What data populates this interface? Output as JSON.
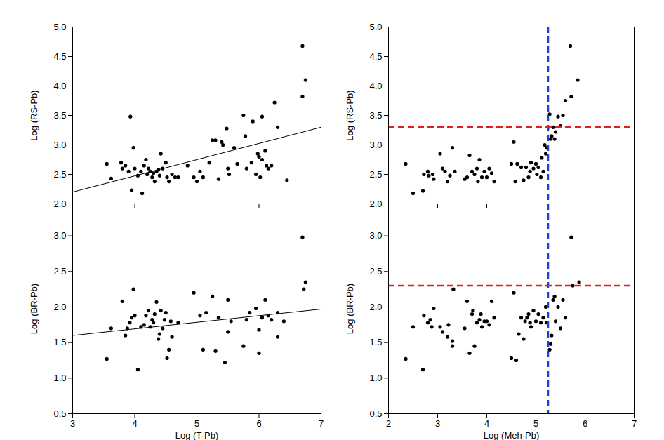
{
  "chart_data": [
    {
      "type": "scatter",
      "ylabel": "Log (RS-Pb)",
      "tick_labels": "y",
      "xlim": [
        3,
        7
      ],
      "xticks": [
        3,
        4,
        5,
        6,
        7
      ],
      "ylim": [
        2.0,
        5.0
      ],
      "yticks": [
        {
          "value": 2.0,
          "label": "2.0"
        },
        2.5,
        {
          "value": 3.0,
          "label": "3.0"
        },
        3.5,
        {
          "value": 4.0,
          "label": "4.0"
        },
        4.5,
        {
          "value": 5.0,
          "label": "5.0"
        }
      ],
      "color": "#000000",
      "marker": "circle",
      "x": [
        3.55,
        3.62,
        3.78,
        3.8,
        3.85,
        3.9,
        3.93,
        3.95,
        3.98,
        4.0,
        4.05,
        4.1,
        4.12,
        4.15,
        4.18,
        4.2,
        4.22,
        4.25,
        4.28,
        4.3,
        4.32,
        4.35,
        4.38,
        4.4,
        4.42,
        4.45,
        4.5,
        4.52,
        4.55,
        4.6,
        4.65,
        4.7,
        4.85,
        4.95,
        5.0,
        5.05,
        5.1,
        5.2,
        5.25,
        5.3,
        5.35,
        5.4,
        5.42,
        5.48,
        5.5,
        5.52,
        5.6,
        5.65,
        5.75,
        5.78,
        5.8,
        5.88,
        5.9,
        5.95,
        5.98,
        6.0,
        6.02,
        6.05,
        6.05,
        6.1,
        6.12,
        6.15,
        6.2,
        6.25,
        6.3,
        6.45,
        6.7,
        6.7,
        6.75
      ],
      "values": [
        2.68,
        2.43,
        2.7,
        2.6,
        2.65,
        2.55,
        3.48,
        2.23,
        2.95,
        2.6,
        2.48,
        2.55,
        2.18,
        2.65,
        2.75,
        2.5,
        2.6,
        2.55,
        2.45,
        2.52,
        2.38,
        2.55,
        2.58,
        2.48,
        2.85,
        2.6,
        2.7,
        2.45,
        2.38,
        2.5,
        2.45,
        2.45,
        2.65,
        2.45,
        2.38,
        2.55,
        2.45,
        2.7,
        3.08,
        3.08,
        2.42,
        3.05,
        3.0,
        3.28,
        2.6,
        2.5,
        2.95,
        2.68,
        3.5,
        3.15,
        2.6,
        2.7,
        3.4,
        2.5,
        2.85,
        2.8,
        2.45,
        3.48,
        2.75,
        2.9,
        2.65,
        2.6,
        2.65,
        3.72,
        3.3,
        2.4,
        3.82,
        4.68,
        4.1
      ],
      "fit_line": {
        "x": [
          3,
          7
        ],
        "values": [
          2.2,
          3.3
        ],
        "color": "#000000"
      }
    },
    {
      "type": "scatter",
      "xlabel": "Log (T-Pb)",
      "ylabel": "Log (BR-Pb)",
      "xlim": [
        3,
        7
      ],
      "xticks": [
        3,
        4,
        5,
        6,
        7
      ],
      "ylim": [
        0.5,
        3.45
      ],
      "yticks": [
        0.5,
        {
          "value": 1.0,
          "label": "1.0"
        },
        1.5,
        {
          "value": 2.0,
          "label": "2.0"
        },
        2.5,
        {
          "value": 3.0,
          "label": "3.0"
        }
      ],
      "color": "#000000",
      "marker": "circle",
      "x": [
        3.55,
        3.62,
        3.8,
        3.85,
        3.88,
        3.92,
        3.95,
        3.98,
        4.0,
        4.05,
        4.1,
        4.15,
        4.18,
        4.22,
        4.25,
        4.28,
        4.3,
        4.32,
        4.35,
        4.38,
        4.4,
        4.42,
        4.45,
        4.48,
        4.5,
        4.52,
        4.55,
        4.58,
        4.6,
        4.7,
        4.95,
        5.05,
        5.1,
        5.15,
        5.25,
        5.3,
        5.35,
        5.45,
        5.5,
        5.5,
        5.55,
        5.75,
        5.8,
        5.85,
        5.95,
        6.0,
        6.0,
        6.05,
        6.1,
        6.15,
        6.2,
        6.3,
        6.3,
        6.4,
        6.7,
        6.72,
        6.75
      ],
      "values": [
        1.27,
        1.7,
        2.08,
        1.6,
        1.7,
        1.78,
        1.85,
        2.25,
        1.88,
        1.12,
        1.72,
        1.75,
        1.88,
        1.95,
        1.72,
        1.82,
        1.78,
        1.9,
        2.07,
        1.55,
        1.62,
        1.95,
        1.7,
        1.82,
        1.92,
        1.28,
        1.4,
        1.8,
        1.58,
        1.78,
        2.2,
        1.88,
        1.4,
        1.92,
        2.15,
        1.38,
        1.85,
        1.22,
        1.65,
        2.1,
        1.8,
        1.45,
        1.82,
        1.92,
        1.98,
        1.35,
        1.68,
        1.85,
        2.1,
        1.88,
        1.82,
        1.58,
        1.92,
        1.8,
        2.98,
        2.25,
        2.35
      ],
      "fit_line": {
        "x": [
          3,
          7
        ],
        "values": [
          1.6,
          1.97
        ],
        "color": "#000000"
      }
    },
    {
      "type": "scatter",
      "ylabel": "Log (RS-Pb)",
      "tick_labels": "y",
      "xlim": [
        2,
        7
      ],
      "xticks": [
        2,
        3,
        4,
        5,
        6,
        7
      ],
      "ylim": [
        2.0,
        5.0
      ],
      "yticks": [
        {
          "value": 2.0,
          "label": "2.0"
        },
        2.5,
        {
          "value": 3.0,
          "label": "3.0"
        },
        3.5,
        {
          "value": 4.0,
          "label": "4.0"
        },
        4.5,
        {
          "value": 5.0,
          "label": "5.0"
        }
      ],
      "color": "#000000",
      "marker": "circle",
      "x": [
        2.35,
        2.5,
        2.7,
        2.72,
        2.8,
        2.82,
        2.9,
        2.92,
        3.05,
        3.1,
        3.15,
        3.2,
        3.25,
        3.3,
        3.35,
        3.55,
        3.6,
        3.65,
        3.7,
        3.75,
        3.8,
        3.82,
        3.85,
        3.9,
        3.95,
        4.0,
        4.05,
        4.1,
        4.15,
        4.5,
        4.55,
        4.58,
        4.62,
        4.7,
        4.75,
        4.8,
        4.85,
        4.88,
        4.9,
        4.95,
        5.0,
        5.02,
        5.05,
        5.1,
        5.12,
        5.15,
        5.18,
        5.2,
        5.22,
        5.25,
        5.28,
        5.3,
        5.32,
        5.35,
        5.38,
        5.4,
        5.45,
        5.5,
        5.55,
        5.6,
        5.7,
        5.72,
        5.85
      ],
      "values": [
        2.68,
        2.18,
        2.22,
        2.5,
        2.55,
        2.48,
        2.5,
        2.42,
        2.85,
        2.6,
        2.55,
        2.38,
        2.48,
        2.95,
        2.55,
        2.42,
        2.45,
        2.82,
        2.55,
        2.5,
        2.6,
        2.38,
        2.75,
        2.45,
        2.55,
        2.45,
        2.6,
        2.52,
        2.38,
        2.68,
        3.05,
        2.38,
        2.68,
        2.62,
        2.4,
        2.62,
        2.45,
        2.55,
        2.7,
        2.6,
        2.68,
        2.5,
        2.62,
        2.45,
        2.78,
        2.55,
        3.0,
        2.85,
        2.95,
        3.3,
        3.52,
        3.1,
        3.15,
        3.3,
        3.1,
        3.22,
        3.48,
        3.32,
        3.5,
        3.75,
        4.68,
        3.82,
        4.1
      ],
      "vline": {
        "value": 5.25,
        "color": "#1f3fdf",
        "line_style": "dashed"
      },
      "hline": {
        "value": 3.3,
        "color": "#e02020",
        "line_style": "dashed"
      }
    },
    {
      "type": "scatter",
      "xlabel": "Log (Meh-Pb)",
      "ylabel": "Log (BR-Pb)",
      "xlim": [
        2,
        7
      ],
      "xticks": [
        2,
        3,
        4,
        5,
        6,
        7
      ],
      "ylim": [
        0.5,
        3.45
      ],
      "yticks": [
        0.5,
        {
          "value": 1.0,
          "label": "1.0"
        },
        1.5,
        {
          "value": 2.0,
          "label": "2.0"
        },
        2.5,
        {
          "value": 3.0,
          "label": "3.0"
        }
      ],
      "color": "#000000",
      "marker": "circle",
      "x": [
        2.35,
        2.5,
        2.7,
        2.72,
        2.8,
        2.85,
        2.88,
        2.92,
        3.05,
        3.1,
        3.2,
        3.22,
        3.3,
        3.3,
        3.32,
        3.55,
        3.6,
        3.65,
        3.7,
        3.72,
        3.75,
        3.8,
        3.85,
        3.88,
        3.9,
        3.95,
        4.0,
        4.05,
        4.1,
        4.15,
        4.5,
        4.55,
        4.6,
        4.65,
        4.7,
        4.75,
        4.78,
        4.82,
        4.85,
        4.88,
        4.9,
        4.95,
        5.0,
        5.05,
        5.1,
        5.15,
        5.2,
        5.22,
        5.28,
        5.3,
        5.32,
        5.35,
        5.38,
        5.4,
        5.45,
        5.5,
        5.55,
        5.6,
        5.72,
        5.75,
        5.88
      ],
      "values": [
        1.27,
        1.72,
        1.12,
        1.88,
        1.78,
        1.82,
        1.72,
        1.98,
        1.72,
        1.65,
        1.58,
        1.75,
        1.45,
        1.52,
        2.25,
        1.7,
        2.08,
        1.35,
        1.9,
        1.95,
        1.45,
        1.78,
        1.82,
        1.9,
        1.72,
        1.8,
        1.8,
        1.75,
        2.08,
        1.85,
        1.28,
        2.2,
        1.25,
        1.62,
        1.85,
        1.55,
        1.8,
        1.85,
        1.9,
        1.78,
        1.72,
        1.95,
        1.8,
        1.9,
        1.78,
        1.85,
        2.0,
        1.78,
        1.4,
        1.48,
        1.6,
        2.1,
        2.15,
        1.8,
        2.0,
        1.7,
        2.1,
        1.85,
        2.98,
        2.3,
        2.35
      ],
      "vline": {
        "value": 5.25,
        "color": "#1f3fdf",
        "line_style": "dashed"
      },
      "hline": {
        "value": 2.3,
        "color": "#e02020",
        "line_style": "dashed"
      }
    }
  ]
}
